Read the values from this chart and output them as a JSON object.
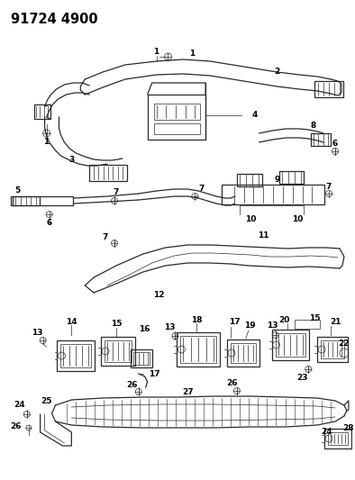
{
  "title": "91724 4900",
  "background_color": "#ffffff",
  "figsize": [
    3.94,
    5.33
  ],
  "dpi": 100,
  "line_color": "#2a2a2a",
  "lw_main": 0.9,
  "lw_thin": 0.5,
  "label_fontsize": 7.5,
  "title_fontsize": 10.5
}
